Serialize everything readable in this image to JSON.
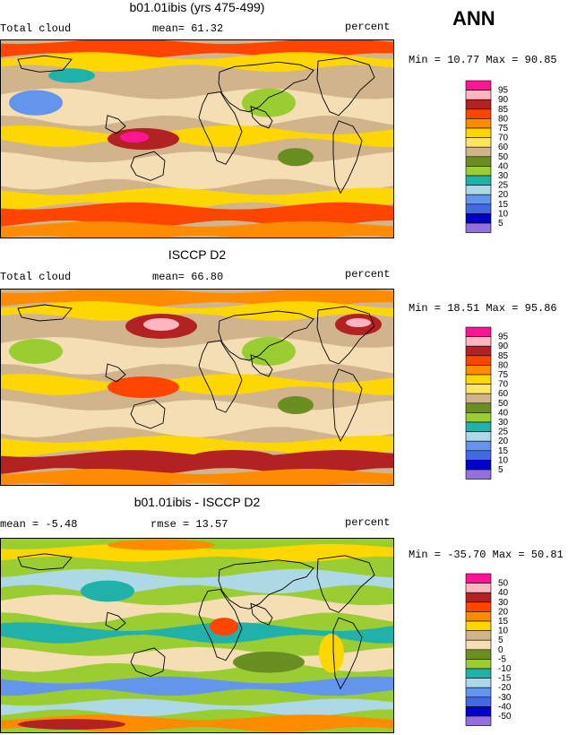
{
  "season": "ANN",
  "panels": [
    {
      "title": "b01.01ibis (yrs 475-499)",
      "left_label": "Total cloud",
      "mid_label": "mean=  61.32",
      "units": "percent",
      "minmax": "Min =  10.77 Max =  90.85",
      "legend_labels": [
        "95",
        "90",
        "85",
        "80",
        "75",
        "70",
        "60",
        "50",
        "40",
        "30",
        "25",
        "20",
        "15",
        "10",
        "5"
      ]
    },
    {
      "title": "ISCCP D2",
      "left_label": "Total cloud",
      "mid_label": "mean=  66.80",
      "units": "percent",
      "minmax": "Min =  18.51 Max =  95.86",
      "legend_labels": [
        "95",
        "90",
        "85",
        "80",
        "75",
        "70",
        "60",
        "50",
        "40",
        "30",
        "25",
        "20",
        "15",
        "10",
        "5"
      ]
    },
    {
      "title": "b01.01ibis - ISCCP D2",
      "left_label": "mean =  -5.48",
      "mid_label": "rmse =  13.57",
      "units": "percent",
      "minmax": "Min = -35.70 Max =  50.81",
      "legend_labels": [
        "50",
        "40",
        "30",
        "20",
        "15",
        "10",
        "5",
        "0",
        "-5",
        "-10",
        "-15",
        "-20",
        "-30",
        "-40",
        "-50"
      ]
    }
  ],
  "colors": {
    "abs_scale": [
      "#ff1493",
      "#ffb6c1",
      "#b22222",
      "#ff4500",
      "#ff8c00",
      "#ffd700",
      "#ffe566",
      "#d2b48c",
      "#f5deb3",
      "#6b8e23",
      "#9acd32",
      "#20b2aa",
      "#add8e6",
      "#6495ed",
      "#4169e1",
      "#0000cd",
      "#9370db"
    ],
    "diff_scale": [
      "#ff1493",
      "#ffb6c1",
      "#b22222",
      "#ff4500",
      "#ff8c00",
      "#ffd700",
      "#d2b48c",
      "#f5deb3",
      "#6b8e23",
      "#9acd32",
      "#20b2aa",
      "#add8e6",
      "#6495ed",
      "#4169e1",
      "#0000cd",
      "#9370db"
    ]
  },
  "chart_data": [
    {
      "type": "heatmap",
      "title": "b01.01ibis (yrs 475-499)",
      "variable": "Total cloud",
      "units": "percent",
      "mean": 61.32,
      "min": 10.77,
      "max": 90.85,
      "contour_levels": [
        5,
        10,
        15,
        20,
        25,
        30,
        40,
        50,
        60,
        70,
        75,
        80,
        85,
        90,
        95
      ]
    },
    {
      "type": "heatmap",
      "title": "ISCCP D2",
      "variable": "Total cloud",
      "units": "percent",
      "mean": 66.8,
      "min": 18.51,
      "max": 95.86,
      "contour_levels": [
        5,
        10,
        15,
        20,
        25,
        30,
        40,
        50,
        60,
        70,
        75,
        80,
        85,
        90,
        95
      ]
    },
    {
      "type": "heatmap",
      "title": "b01.01ibis - ISCCP D2",
      "units": "percent",
      "mean": -5.48,
      "rmse": 13.57,
      "min": -35.7,
      "max": 50.81,
      "contour_levels": [
        -50,
        -40,
        -30,
        -20,
        -15,
        -10,
        -5,
        0,
        5,
        10,
        15,
        20,
        30,
        40,
        50
      ]
    }
  ]
}
